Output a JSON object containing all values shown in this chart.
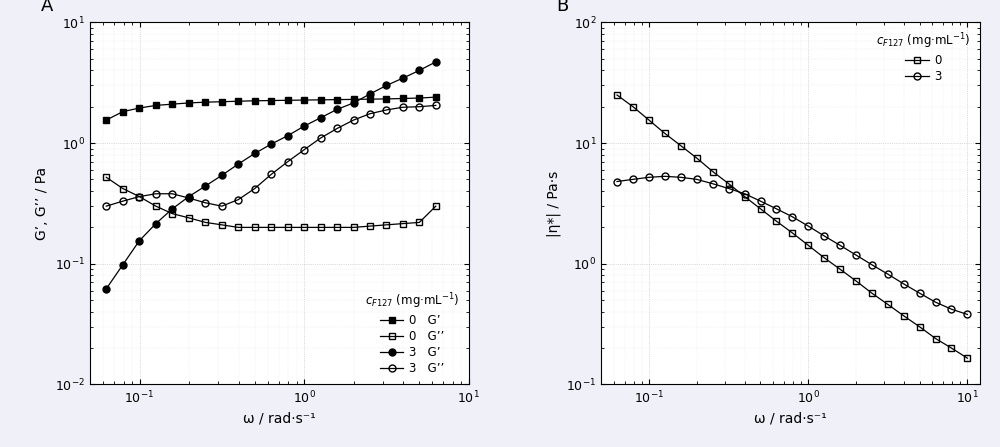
{
  "panel_A": {
    "label": "A",
    "xlabel": "ω / rad·s⁻¹",
    "ylabel": "G’, G’’ / Pa",
    "xlim": [
      0.05,
      10
    ],
    "ylim": [
      0.01,
      10
    ],
    "series": {
      "c0_Gp": {
        "x": [
          0.0628,
          0.0791,
          0.0997,
          0.1256,
          0.1582,
          0.1992,
          0.251,
          0.3162,
          0.3982,
          0.5012,
          0.631,
          0.7943,
          1.0,
          1.2589,
          1.5849,
          1.9953,
          2.5119,
          3.1623,
          3.9811,
          5.0119,
          6.3096
        ],
        "y": [
          1.55,
          1.82,
          1.95,
          2.05,
          2.1,
          2.15,
          2.18,
          2.2,
          2.22,
          2.24,
          2.25,
          2.26,
          2.27,
          2.28,
          2.29,
          2.3,
          2.31,
          2.32,
          2.34,
          2.36,
          2.4
        ],
        "marker": "s",
        "fillstyle": "full",
        "label": "0   G’"
      },
      "c0_Gpp": {
        "x": [
          0.0628,
          0.0791,
          0.0997,
          0.1256,
          0.1582,
          0.1992,
          0.251,
          0.3162,
          0.3982,
          0.5012,
          0.631,
          0.7943,
          1.0,
          1.2589,
          1.5849,
          1.9953,
          2.5119,
          3.1623,
          3.9811,
          5.0119,
          6.3096
        ],
        "y": [
          0.52,
          0.42,
          0.36,
          0.3,
          0.26,
          0.24,
          0.22,
          0.21,
          0.2,
          0.2,
          0.2,
          0.2,
          0.2,
          0.2,
          0.2,
          0.2,
          0.205,
          0.21,
          0.215,
          0.22,
          0.3
        ],
        "marker": "s",
        "fillstyle": "none",
        "label": "0   G’’"
      },
      "c3_Gp": {
        "x": [
          0.0628,
          0.0791,
          0.0997,
          0.1256,
          0.1582,
          0.1992,
          0.251,
          0.3162,
          0.3982,
          0.5012,
          0.631,
          0.7943,
          1.0,
          1.2589,
          1.5849,
          1.9953,
          2.5119,
          3.1623,
          3.9811,
          5.0119,
          6.3096
        ],
        "y": [
          0.062,
          0.098,
          0.155,
          0.215,
          0.285,
          0.36,
          0.44,
          0.54,
          0.67,
          0.82,
          0.98,
          1.15,
          1.38,
          1.62,
          1.9,
          2.15,
          2.55,
          3.0,
          3.45,
          4.0,
          4.7
        ],
        "marker": "o",
        "fillstyle": "full",
        "label": "3   G’"
      },
      "c3_Gpp": {
        "x": [
          0.0628,
          0.0791,
          0.0997,
          0.1256,
          0.1582,
          0.1992,
          0.251,
          0.3162,
          0.3982,
          0.5012,
          0.631,
          0.7943,
          1.0,
          1.2589,
          1.5849,
          1.9953,
          2.5119,
          3.1623,
          3.9811,
          5.0119,
          6.3096
        ],
        "y": [
          0.3,
          0.33,
          0.36,
          0.38,
          0.38,
          0.35,
          0.32,
          0.3,
          0.34,
          0.42,
          0.55,
          0.7,
          0.88,
          1.1,
          1.32,
          1.55,
          1.75,
          1.88,
          1.98,
          2.0,
          2.05
        ],
        "marker": "o",
        "fillstyle": "none",
        "label": "3   G’’"
      }
    }
  },
  "panel_B": {
    "label": "B",
    "xlabel": "ω / rad·s⁻¹",
    "ylabel": "|η*| / Pa·s",
    "xlim": [
      0.05,
      12
    ],
    "ylim": [
      0.1,
      100
    ],
    "series": {
      "c0": {
        "x": [
          0.0628,
          0.0791,
          0.0997,
          0.1256,
          0.1582,
          0.1992,
          0.251,
          0.3162,
          0.3982,
          0.5012,
          0.631,
          0.7943,
          1.0,
          1.2589,
          1.5849,
          1.9953,
          2.5119,
          3.1623,
          3.9811,
          5.0119,
          6.3096,
          7.943,
          10.0
        ],
        "y": [
          25.0,
          20.0,
          15.5,
          12.0,
          9.5,
          7.5,
          5.8,
          4.6,
          3.6,
          2.85,
          2.25,
          1.8,
          1.42,
          1.12,
          0.9,
          0.72,
          0.57,
          0.46,
          0.37,
          0.3,
          0.24,
          0.2,
          0.165
        ],
        "marker": "s",
        "fillstyle": "none",
        "label": "0"
      },
      "c3": {
        "x": [
          0.0628,
          0.0791,
          0.0997,
          0.1256,
          0.1582,
          0.1992,
          0.251,
          0.3162,
          0.3982,
          0.5012,
          0.631,
          0.7943,
          1.0,
          1.2589,
          1.5849,
          1.9953,
          2.5119,
          3.1623,
          3.9811,
          5.0119,
          6.3096,
          7.943,
          10.0
        ],
        "y": [
          4.8,
          5.0,
          5.2,
          5.3,
          5.2,
          5.0,
          4.6,
          4.2,
          3.8,
          3.3,
          2.85,
          2.45,
          2.05,
          1.7,
          1.42,
          1.18,
          0.98,
          0.82,
          0.68,
          0.57,
          0.48,
          0.42,
          0.38
        ],
        "marker": "o",
        "fillstyle": "none",
        "label": "3"
      }
    }
  },
  "fig_width": 10.0,
  "fig_height": 4.47,
  "fig_bg_color": "#f0f0f8",
  "plot_bg_color": "#ffffff",
  "marker_size": 5,
  "line_width": 0.9,
  "grid_color": "#cccccc",
  "grid_alpha": 0.5
}
